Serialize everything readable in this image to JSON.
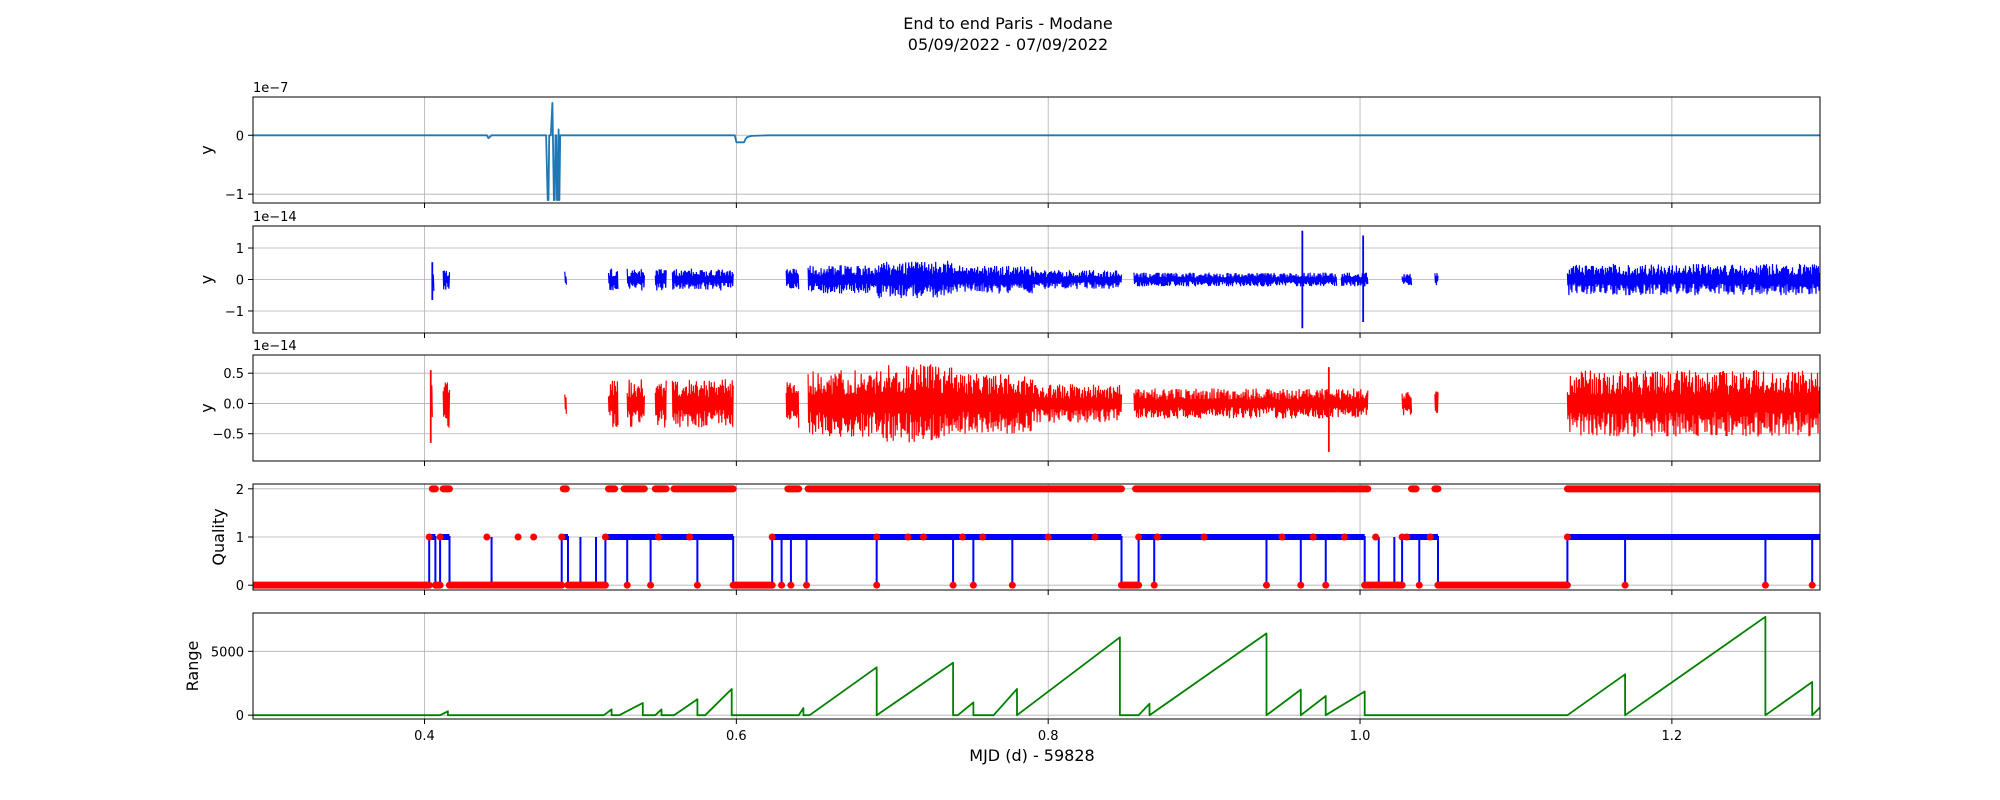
{
  "figure": {
    "title_line1": "End to end Paris - Modane",
    "title_line2": "05/09/2022 - 07/09/2022",
    "xlabel": "MJD (d) - 59828"
  },
  "chart_data": [
    {
      "type": "line",
      "name": "panel-1",
      "ylabel": "y",
      "offset_text": "1e−7",
      "xlim": [
        0.29,
        1.295
      ],
      "ylim": [
        -1.15,
        0.65
      ],
      "xticks": [
        0.4,
        0.6,
        0.8,
        1.0,
        1.2
      ],
      "xtick_labels": [],
      "yticks": [
        -1,
        0
      ],
      "ytick_labels": [
        "−1",
        "0"
      ],
      "grid": true,
      "color": "#1f77b4",
      "series": [
        {
          "x": [
            0.29,
            0.44,
            0.441,
            0.443,
            0.478,
            0.479,
            0.4795,
            0.48,
            0.481,
            0.482,
            0.483,
            0.4835,
            0.484,
            0.4845,
            0.485,
            0.4855,
            0.486,
            0.4865,
            0.487,
            0.488,
            0.5,
            0.599,
            0.6,
            0.601,
            0.605,
            0.606,
            0.607,
            0.61,
            0.62,
            1.295
          ],
          "y": [
            0,
            0,
            -0.05,
            0,
            0,
            -1.1,
            -1.1,
            0,
            0,
            0.55,
            -1.1,
            -1.1,
            0,
            0,
            -1.1,
            -1.1,
            0.1,
            -1.1,
            0,
            0,
            0,
            0,
            -0.12,
            -0.12,
            -0.12,
            -0.06,
            -0.03,
            -0.01,
            0,
            0
          ]
        }
      ]
    },
    {
      "type": "line",
      "name": "panel-2",
      "ylabel": "y",
      "offset_text": "1e−14",
      "xlim": [
        0.29,
        1.295
      ],
      "ylim": [
        -1.7,
        1.7
      ],
      "xticks": [
        0.4,
        0.6,
        0.8,
        1.0,
        1.2
      ],
      "xtick_labels": [],
      "yticks": [
        -1,
        0,
        1
      ],
      "ytick_labels": [
        "−1",
        "0",
        "1"
      ],
      "grid": true,
      "color": "#0000ff",
      "segments": [
        {
          "x": [
            0.405,
            0.406
          ],
          "amp": 0.45
        },
        {
          "x": [
            0.412,
            0.416
          ],
          "amp": 0.35
        },
        {
          "x": [
            0.49,
            0.491
          ],
          "amp": 0.25
        },
        {
          "x": [
            0.518,
            0.524
          ],
          "amp": 0.35
        },
        {
          "x": [
            0.53,
            0.541
          ],
          "amp": 0.35
        },
        {
          "x": [
            0.548,
            0.555
          ],
          "amp": 0.35
        },
        {
          "x": [
            0.559,
            0.598
          ],
          "amp": 0.35
        },
        {
          "x": [
            0.632,
            0.64
          ],
          "amp": 0.35
        },
        {
          "x": [
            0.646,
            0.69
          ],
          "amp": 0.45
        },
        {
          "x": [
            0.69,
            0.74
          ],
          "amp": 0.6
        },
        {
          "x": [
            0.74,
            0.79
          ],
          "amp": 0.45
        },
        {
          "x": [
            0.79,
            0.847
          ],
          "amp": 0.3
        },
        {
          "x": [
            0.855,
            0.985
          ],
          "amp": 0.22
        },
        {
          "x": [
            0.988,
            1.005
          ],
          "amp": 0.22
        },
        {
          "x": [
            1.027,
            1.033
          ],
          "amp": 0.18
        },
        {
          "x": [
            1.048,
            1.05
          ],
          "amp": 0.2
        },
        {
          "x": [
            1.133,
            1.295
          ],
          "amp": 0.5
        }
      ],
      "spikes": [
        {
          "x": 0.405,
          "y": [
            -0.65,
            0.55
          ]
        },
        {
          "x": 0.963,
          "y": [
            -1.55,
            1.55
          ]
        },
        {
          "x": 1.002,
          "y": [
            -1.35,
            1.4
          ]
        }
      ]
    },
    {
      "type": "line",
      "name": "panel-3",
      "ylabel": "y",
      "offset_text": "1e−14",
      "xlim": [
        0.29,
        1.295
      ],
      "ylim": [
        -0.95,
        0.8
      ],
      "xticks": [
        0.4,
        0.6,
        0.8,
        1.0,
        1.2
      ],
      "xtick_labels": [],
      "yticks": [
        -0.5,
        0.0,
        0.5
      ],
      "ytick_labels": [
        "−0.5",
        "0.0",
        "0.5"
      ],
      "grid": true,
      "color": "#ff0000",
      "segments": [
        {
          "x": [
            0.404,
            0.405
          ],
          "amp": 0.45
        },
        {
          "x": [
            0.412,
            0.416
          ],
          "amp": 0.4
        },
        {
          "x": [
            0.49,
            0.491
          ],
          "amp": 0.25
        },
        {
          "x": [
            0.518,
            0.524
          ],
          "amp": 0.4
        },
        {
          "x": [
            0.53,
            0.541
          ],
          "amp": 0.4
        },
        {
          "x": [
            0.548,
            0.555
          ],
          "amp": 0.4
        },
        {
          "x": [
            0.559,
            0.598
          ],
          "amp": 0.4
        },
        {
          "x": [
            0.632,
            0.64
          ],
          "amp": 0.4
        },
        {
          "x": [
            0.646,
            0.69
          ],
          "amp": 0.55
        },
        {
          "x": [
            0.69,
            0.74
          ],
          "amp": 0.65
        },
        {
          "x": [
            0.74,
            0.79
          ],
          "amp": 0.5
        },
        {
          "x": [
            0.79,
            0.847
          ],
          "amp": 0.32
        },
        {
          "x": [
            0.855,
            0.985
          ],
          "amp": 0.25
        },
        {
          "x": [
            0.985,
            1.005
          ],
          "amp": 0.25
        },
        {
          "x": [
            1.027,
            1.033
          ],
          "amp": 0.2
        },
        {
          "x": [
            1.048,
            1.05
          ],
          "amp": 0.2
        },
        {
          "x": [
            1.133,
            1.295
          ],
          "amp": 0.55
        }
      ],
      "spikes": [
        {
          "x": 0.404,
          "y": [
            -0.65,
            0.55
          ]
        },
        {
          "x": 0.98,
          "y": [
            -0.8,
            0.6
          ]
        }
      ]
    },
    {
      "type": "scatter",
      "name": "quality",
      "ylabel": "Quality",
      "xlim": [
        0.29,
        1.295
      ],
      "ylim": [
        -0.1,
        2.1
      ],
      "xticks": [
        0.4,
        0.6,
        0.8,
        1.0,
        1.2
      ],
      "xtick_labels": [],
      "yticks": [
        0,
        1,
        2
      ],
      "ytick_labels": [
        "0",
        "1",
        "2"
      ],
      "grid": true,
      "line_color": "#0000ff",
      "marker_color": "#ff0000",
      "runs": [
        {
          "x": [
            0.29,
            0.403
          ],
          "level": 0
        },
        {
          "x": [
            0.403,
            0.407
          ],
          "level": 1
        },
        {
          "x": [
            0.407,
            0.41
          ],
          "level": 0
        },
        {
          "x": [
            0.41,
            0.416
          ],
          "level": 1
        },
        {
          "x": [
            0.416,
            0.488
          ],
          "level": 0
        },
        {
          "x": [
            0.488,
            0.492
          ],
          "level": 1
        },
        {
          "x": [
            0.492,
            0.516
          ],
          "level": 0
        },
        {
          "x": [
            0.516,
            0.598
          ],
          "level": 1
        },
        {
          "x": [
            0.598,
            0.623
          ],
          "level": 0
        },
        {
          "x": [
            0.623,
            0.847
          ],
          "level": 1
        },
        {
          "x": [
            0.847,
            0.858
          ],
          "level": 0
        },
        {
          "x": [
            0.858,
            1.003
          ],
          "level": 1
        },
        {
          "x": [
            1.003,
            1.027
          ],
          "level": 0
        },
        {
          "x": [
            1.027,
            1.05
          ],
          "level": 1
        },
        {
          "x": [
            1.05,
            1.133
          ],
          "level": 0
        },
        {
          "x": [
            1.133,
            1.295
          ],
          "level": 1
        }
      ],
      "level2": [
        {
          "x": [
            0.405,
            0.407
          ]
        },
        {
          "x": [
            0.412,
            0.416
          ]
        },
        {
          "x": [
            0.489,
            0.491
          ]
        },
        {
          "x": [
            0.518,
            0.522
          ]
        },
        {
          "x": [
            0.528,
            0.541
          ]
        },
        {
          "x": [
            0.548,
            0.555
          ]
        },
        {
          "x": [
            0.56,
            0.598
          ]
        },
        {
          "x": [
            0.633,
            0.64
          ]
        },
        {
          "x": [
            0.646,
            0.847
          ]
        },
        {
          "x": [
            0.856,
            0.985
          ]
        },
        {
          "x": [
            0.986,
            1.005
          ]
        },
        {
          "x": [
            1.033,
            1.036
          ]
        },
        {
          "x": [
            1.048,
            1.05
          ]
        },
        {
          "x": [
            1.133,
            1.295
          ]
        }
      ],
      "dips": [
        0.443,
        0.5,
        0.51,
        0.53,
        0.545,
        0.575,
        0.629,
        0.635,
        0.645,
        0.69,
        0.739,
        0.752,
        0.777,
        0.868,
        0.94,
        0.962,
        0.978,
        1.012,
        1.022,
        1.038,
        1.17,
        1.26,
        1.29
      ],
      "dots": [
        0.44,
        0.46,
        0.47,
        0.55,
        0.57,
        0.69,
        0.71,
        0.72,
        0.745,
        0.758,
        0.8,
        0.83,
        0.87,
        0.9,
        0.95,
        0.97,
        0.99,
        1.01,
        1.03,
        1.045
      ]
    },
    {
      "type": "line",
      "name": "range",
      "ylabel": "Range",
      "xlim": [
        0.29,
        1.295
      ],
      "ylim": [
        -300,
        8000
      ],
      "xticks": [
        0.4,
        0.6,
        0.8,
        1.0,
        1.2
      ],
      "xtick_labels": [
        "0.4",
        "0.6",
        "0.8",
        "1.0",
        "1.2"
      ],
      "yticks": [
        0,
        5000
      ],
      "ytick_labels": [
        "0",
        "5000"
      ],
      "grid": true,
      "color": "#008000",
      "series": [
        {
          "x": [
            0.29,
            0.41,
            0.415,
            0.415,
            0.515,
            0.52,
            0.52,
            0.525,
            0.54,
            0.54,
            0.548,
            0.552,
            0.552,
            0.56,
            0.575,
            0.575,
            0.58,
            0.597,
            0.597,
            0.64,
            0.643,
            0.643,
            0.647,
            0.69,
            0.69,
            0.739,
            0.739,
            0.742,
            0.752,
            0.752,
            0.765,
            0.78,
            0.78,
            0.846,
            0.846,
            0.858,
            0.865,
            0.865,
            0.94,
            0.94,
            0.962,
            0.962,
            0.978,
            0.978,
            1.003,
            1.003,
            1.133,
            1.17,
            1.17,
            1.26,
            1.26,
            1.29,
            1.29,
            1.295
          ],
          "y": [
            0,
            0,
            300,
            0,
            0,
            450,
            0,
            0,
            950,
            0,
            0,
            450,
            0,
            0,
            1250,
            0,
            0,
            2050,
            0,
            0,
            550,
            0,
            0,
            3750,
            0,
            4100,
            0,
            0,
            1000,
            0,
            0,
            2050,
            0,
            6100,
            0,
            0,
            900,
            0,
            6400,
            0,
            2000,
            0,
            1500,
            0,
            1850,
            0,
            0,
            3200,
            0,
            7700,
            0,
            2600,
            0,
            600
          ]
        }
      ]
    }
  ]
}
